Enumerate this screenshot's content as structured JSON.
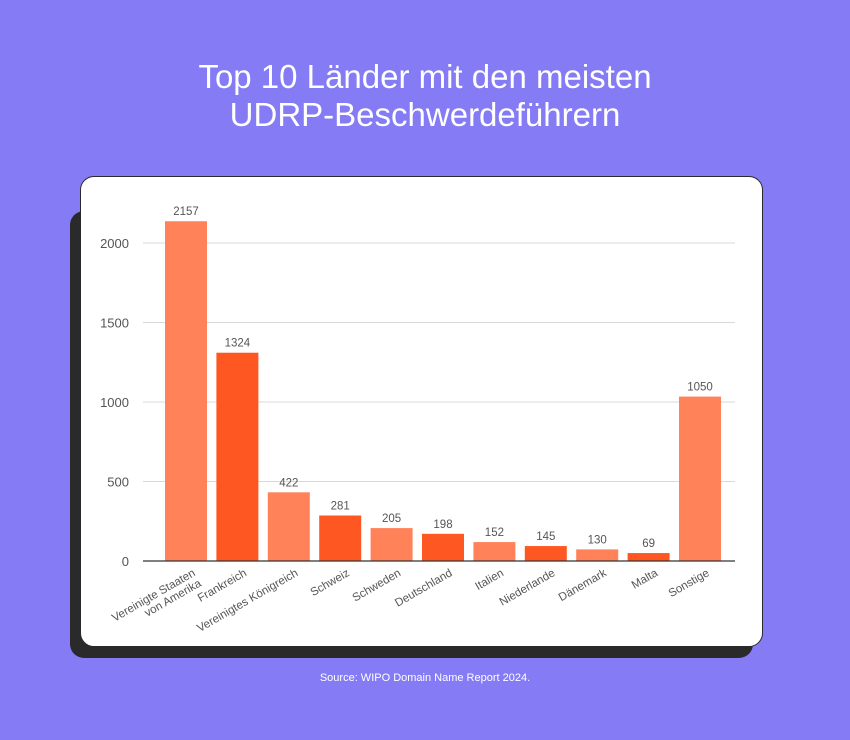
{
  "header": {
    "title_line1": "Top 10 Länder mit den meisten",
    "title_line2": "UDRP-Beschwerdeführern"
  },
  "footer": {
    "source": "Source: WIPO Domain Name Report 2024."
  },
  "colors": {
    "background": "#847bf5",
    "bar_light": "#ff8259",
    "bar_dark": "#ff5722",
    "grid": "#d9d9d9",
    "axis": "#333333",
    "text": "#555555"
  },
  "chart_data": {
    "type": "bar",
    "title": "Top 10 Länder mit den meisten UDRP-Beschwerdeführern",
    "xlabel": "",
    "ylabel": "",
    "ylim": [
      0,
      2250
    ],
    "yticks": [
      0,
      500,
      1000,
      1500,
      2000
    ],
    "grid": true,
    "categories": [
      [
        "Vereinigte Staaten",
        "von Amerika"
      ],
      [
        "Frankreich"
      ],
      [
        "Vereinigtes Königreich"
      ],
      [
        "Schweiz"
      ],
      [
        "Schweden"
      ],
      [
        "Deutschland"
      ],
      [
        "Italien"
      ],
      [
        "Niederlande"
      ],
      [
        "Dänemark"
      ],
      [
        "Malta"
      ],
      [
        "Sonstige"
      ]
    ],
    "values": [
      2157,
      1324,
      422,
      281,
      205,
      198,
      152,
      145,
      130,
      69,
      1050
    ],
    "bar_heights_estimated": [
      2137,
      1310,
      432,
      286,
      207,
      171,
      119,
      94,
      73,
      50,
      1034
    ]
  }
}
